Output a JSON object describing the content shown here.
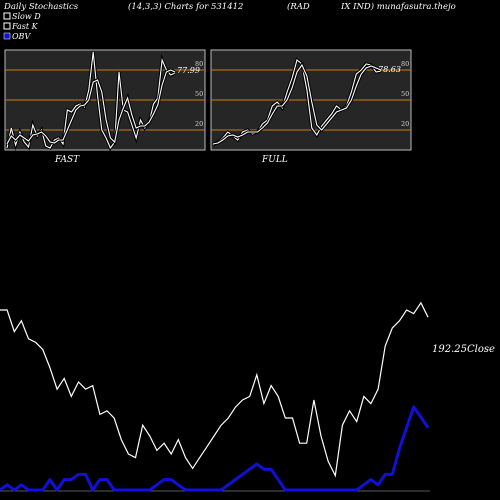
{
  "header": {
    "title": "Daily Stochastics",
    "params": "(14,3,3) Charts for 531412",
    "name_part": "(RAD",
    "suffix": "IX IND) munafasutra.thejo"
  },
  "legend": [
    {
      "label": "Slow  D",
      "swatch": "white-box"
    },
    {
      "label": "Fast K",
      "swatch": "white-box"
    },
    {
      "label": "OBV",
      "swatch": "blue-box"
    }
  ],
  "colors": {
    "background": "#000000",
    "panel": "#262626",
    "gridline": "#c87d10",
    "line": "#ffffff",
    "obv": "#1010d8"
  },
  "chart_data": [
    {
      "type": "line",
      "name": "FAST",
      "ylim": [
        0,
        100
      ],
      "yticks": [
        20,
        50,
        80
      ],
      "last_value": "77.99",
      "series": [
        {
          "name": "Fast K",
          "values": [
            2,
            22,
            5,
            18,
            8,
            3,
            25,
            14,
            20,
            4,
            2,
            10,
            12,
            6,
            40,
            38,
            44,
            46,
            43,
            60,
            98,
            55,
            20,
            12,
            2,
            8,
            78,
            40,
            38,
            25,
            12,
            30,
            22,
            28,
            46,
            52,
            90,
            80,
            75,
            77
          ]
        },
        {
          "name": "Slow D",
          "values": [
            6,
            14,
            10,
            15,
            12,
            9,
            15,
            16,
            18,
            14,
            8,
            7,
            10,
            10,
            20,
            30,
            40,
            44,
            45,
            50,
            68,
            70,
            58,
            30,
            12,
            8,
            30,
            42,
            52,
            35,
            22,
            24,
            24,
            28,
            36,
            45,
            65,
            78,
            80,
            78
          ]
        }
      ]
    },
    {
      "type": "line",
      "name": "FULL",
      "ylim": [
        0,
        100
      ],
      "yticks": [
        20,
        50,
        80
      ],
      "last_value": "78.63",
      "series": [
        {
          "name": "Fast K",
          "values": [
            5,
            8,
            12,
            18,
            14,
            10,
            18,
            20,
            16,
            18,
            26,
            30,
            44,
            48,
            42,
            58,
            72,
            90,
            86,
            60,
            22,
            15,
            24,
            30,
            36,
            44,
            40,
            44,
            58,
            76,
            80,
            86,
            85,
            78,
            79
          ]
        },
        {
          "name": "Slow D",
          "values": [
            6,
            7,
            10,
            14,
            15,
            13,
            15,
            18,
            18,
            18,
            22,
            27,
            36,
            44,
            44,
            50,
            62,
            78,
            85,
            74,
            48,
            25,
            20,
            26,
            32,
            38,
            40,
            42,
            50,
            64,
            76,
            82,
            84,
            82,
            80
          ]
        }
      ]
    },
    {
      "type": "line",
      "name": "OBV-Close",
      "series": [
        {
          "name": "Close",
          "values": [
            100,
            100,
            88,
            94,
            84,
            82,
            78,
            68,
            56,
            62,
            52,
            60,
            56,
            58,
            42,
            44,
            40,
            28,
            20,
            18,
            36,
            30,
            22,
            26,
            20,
            28,
            18,
            12,
            18,
            24,
            30,
            36,
            40,
            46,
            50,
            52,
            64,
            48,
            58,
            52,
            40,
            40,
            26,
            26,
            50,
            30,
            16,
            8,
            36,
            44,
            38,
            52,
            48,
            56,
            80,
            90,
            94,
            100,
            98,
            104,
            96
          ]
        },
        {
          "name": "OBV",
          "values": [
            0,
            1,
            0,
            1,
            0,
            0,
            0,
            2,
            0,
            2,
            2,
            3,
            3,
            0,
            2,
            2,
            0,
            0,
            0,
            0,
            0,
            0,
            1,
            2,
            2,
            1,
            0,
            0,
            0,
            0,
            0,
            0,
            1,
            2,
            3,
            4,
            5,
            4,
            4,
            2,
            0,
            0,
            0,
            0,
            0,
            0,
            0,
            0,
            0,
            0,
            0,
            1,
            2,
            1,
            3,
            3,
            8,
            12,
            16,
            14,
            12
          ]
        }
      ],
      "close_label": "192.25Close"
    }
  ],
  "panels": {
    "fast_label": "FAST",
    "full_label": "FULL"
  }
}
